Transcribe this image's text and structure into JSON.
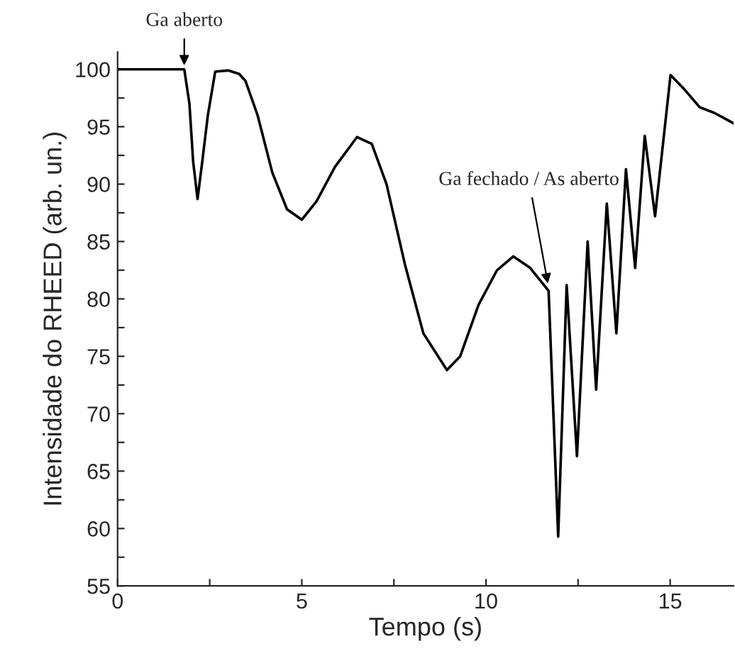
{
  "chart_data": {
    "type": "line",
    "xlabel": "Tempo (s)",
    "ylabel": "Intensidade do RHEED (arb. un.)",
    "x": [
      0,
      1.0,
      1.81,
      1.95,
      2.05,
      2.17,
      2.3,
      2.45,
      2.65,
      3.0,
      3.3,
      3.47,
      3.8,
      4.2,
      4.6,
      5.0,
      5.4,
      5.9,
      6.5,
      6.9,
      7.3,
      7.8,
      8.3,
      8.94,
      9.3,
      9.8,
      10.3,
      10.74,
      11.2,
      11.7,
      11.96,
      12.19,
      12.47,
      12.76,
      12.99,
      13.28,
      13.54,
      13.8,
      14.05,
      14.31,
      14.59,
      15.01,
      15.4,
      15.8,
      16.2,
      16.72
    ],
    "series": [
      {
        "color": "#000000",
        "values": [
          100,
          100,
          100,
          97,
          92,
          88.7,
          92,
          96,
          99.8,
          99.9,
          99.6,
          99,
          96,
          91,
          87.8,
          86.9,
          88.5,
          91.5,
          94.1,
          93.5,
          90,
          83,
          77,
          73.8,
          75,
          79.5,
          82.5,
          83.7,
          82.7,
          80.7,
          59.3,
          81.2,
          66.3,
          85.0,
          72.1,
          88.3,
          77.0,
          91.3,
          82.7,
          94.2,
          87.2,
          99.5,
          98.2,
          96.7,
          96.2,
          95.3
        ]
      }
    ],
    "xlim": [
      0,
      16.72
    ],
    "ylim": [
      55,
      101.5
    ],
    "xticks": [
      0,
      {
        "value": 2.5,
        "label": null
      },
      5,
      {
        "value": 7.5,
        "label": null
      },
      10,
      {
        "value": 12.5,
        "label": null
      },
      15
    ],
    "yticks": [
      55,
      {
        "value": 57.5,
        "label": null
      },
      60,
      {
        "value": 62.5,
        "label": null
      },
      65,
      {
        "value": 67.5,
        "label": null
      },
      70,
      {
        "value": 72.5,
        "label": null
      },
      75,
      {
        "value": 77.5,
        "label": null
      },
      80,
      {
        "value": 82.5,
        "label": null
      },
      85,
      {
        "value": 87.5,
        "label": null
      },
      90,
      {
        "value": 92.5,
        "label": null
      },
      95,
      {
        "value": 97.5,
        "label": null
      },
      100
    ],
    "annotations": [
      {
        "text": "Ga aberto",
        "x": 1.81,
        "y": 100
      },
      {
        "text": "Ga fechado / As aberto",
        "x": 11.7,
        "y": 81
      }
    ],
    "grid": false,
    "legend": false,
    "marker": "none",
    "line_style": "solid"
  }
}
